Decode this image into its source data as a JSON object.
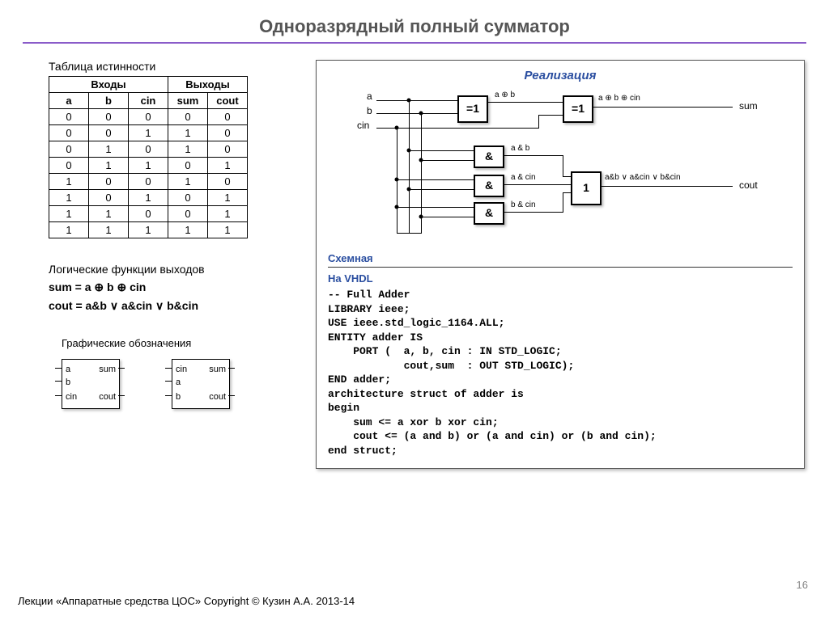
{
  "page": {
    "title": "Одноразрядный полный сумматор",
    "footer": "Лекции «Аппаратные средства ЦОС» Copyright © Кузин А.А. 2013-14",
    "pagenum": "16"
  },
  "truth_table": {
    "caption": "Таблица истинности",
    "group_inputs": "Входы",
    "group_outputs": "Выходы",
    "columns": [
      "a",
      "b",
      "cin",
      "sum",
      "cout"
    ],
    "rows": [
      [
        "0",
        "0",
        "0",
        "0",
        "0"
      ],
      [
        "0",
        "0",
        "1",
        "1",
        "0"
      ],
      [
        "0",
        "1",
        "0",
        "1",
        "0"
      ],
      [
        "0",
        "1",
        "1",
        "0",
        "1"
      ],
      [
        "1",
        "0",
        "0",
        "1",
        "0"
      ],
      [
        "1",
        "0",
        "1",
        "0",
        "1"
      ],
      [
        "1",
        "1",
        "0",
        "0",
        "1"
      ],
      [
        "1",
        "1",
        "1",
        "1",
        "1"
      ]
    ]
  },
  "logic": {
    "heading": "Логические функции выходов",
    "sum_eq": "sum = a ⊕ b ⊕ cin",
    "cout_eq": "cout = a&b ∨ a&cin ∨ b&cin"
  },
  "graphic_symbols": {
    "heading": "Графические обозначения",
    "box1": {
      "l": [
        "a",
        "b",
        "cin"
      ],
      "r": [
        "sum",
        "",
        "cout"
      ]
    },
    "box2": {
      "l": [
        "cin",
        "a",
        "b"
      ],
      "r": [
        "sum",
        "",
        "cout"
      ]
    }
  },
  "realization": {
    "title": "Реализация",
    "schem_label": "Схемная",
    "vhdl_label": "На VHDL",
    "inputs": {
      "a": "a",
      "b": "b",
      "cin": "cin"
    },
    "outputs": {
      "sum": "sum",
      "cout": "cout"
    },
    "gates": {
      "xor": "=1",
      "and": "&",
      "or": "1"
    },
    "annot": {
      "a_xor_b": "a ⊕ b",
      "a_xor_b_xor_cin": "a ⊕ b ⊕ cin",
      "a_and_b": "a & b",
      "a_and_cin": "a & cin",
      "b_and_cin": "b & cin",
      "or_out": "a&b ∨ a&cin ∨ b&cin"
    },
    "vhdl_code": "-- Full Adder\nLIBRARY ieee;\nUSE ieee.std_logic_1164.ALL;\nENTITY adder IS\n    PORT (  a, b, cin : IN STD_LOGIC;\n            cout,sum  : OUT STD_LOGIC);\nEND adder;\narchitecture struct of adder is\nbegin\n    sum <= a xor b xor cin;\n    cout <= (a and b) or (a and cin) or (b and cin);\nend struct;"
  },
  "colors": {
    "accent": "#8a5cc9",
    "heading": "#2a4ea0",
    "text": "#000000",
    "border": "#000000",
    "bg": "#ffffff"
  }
}
